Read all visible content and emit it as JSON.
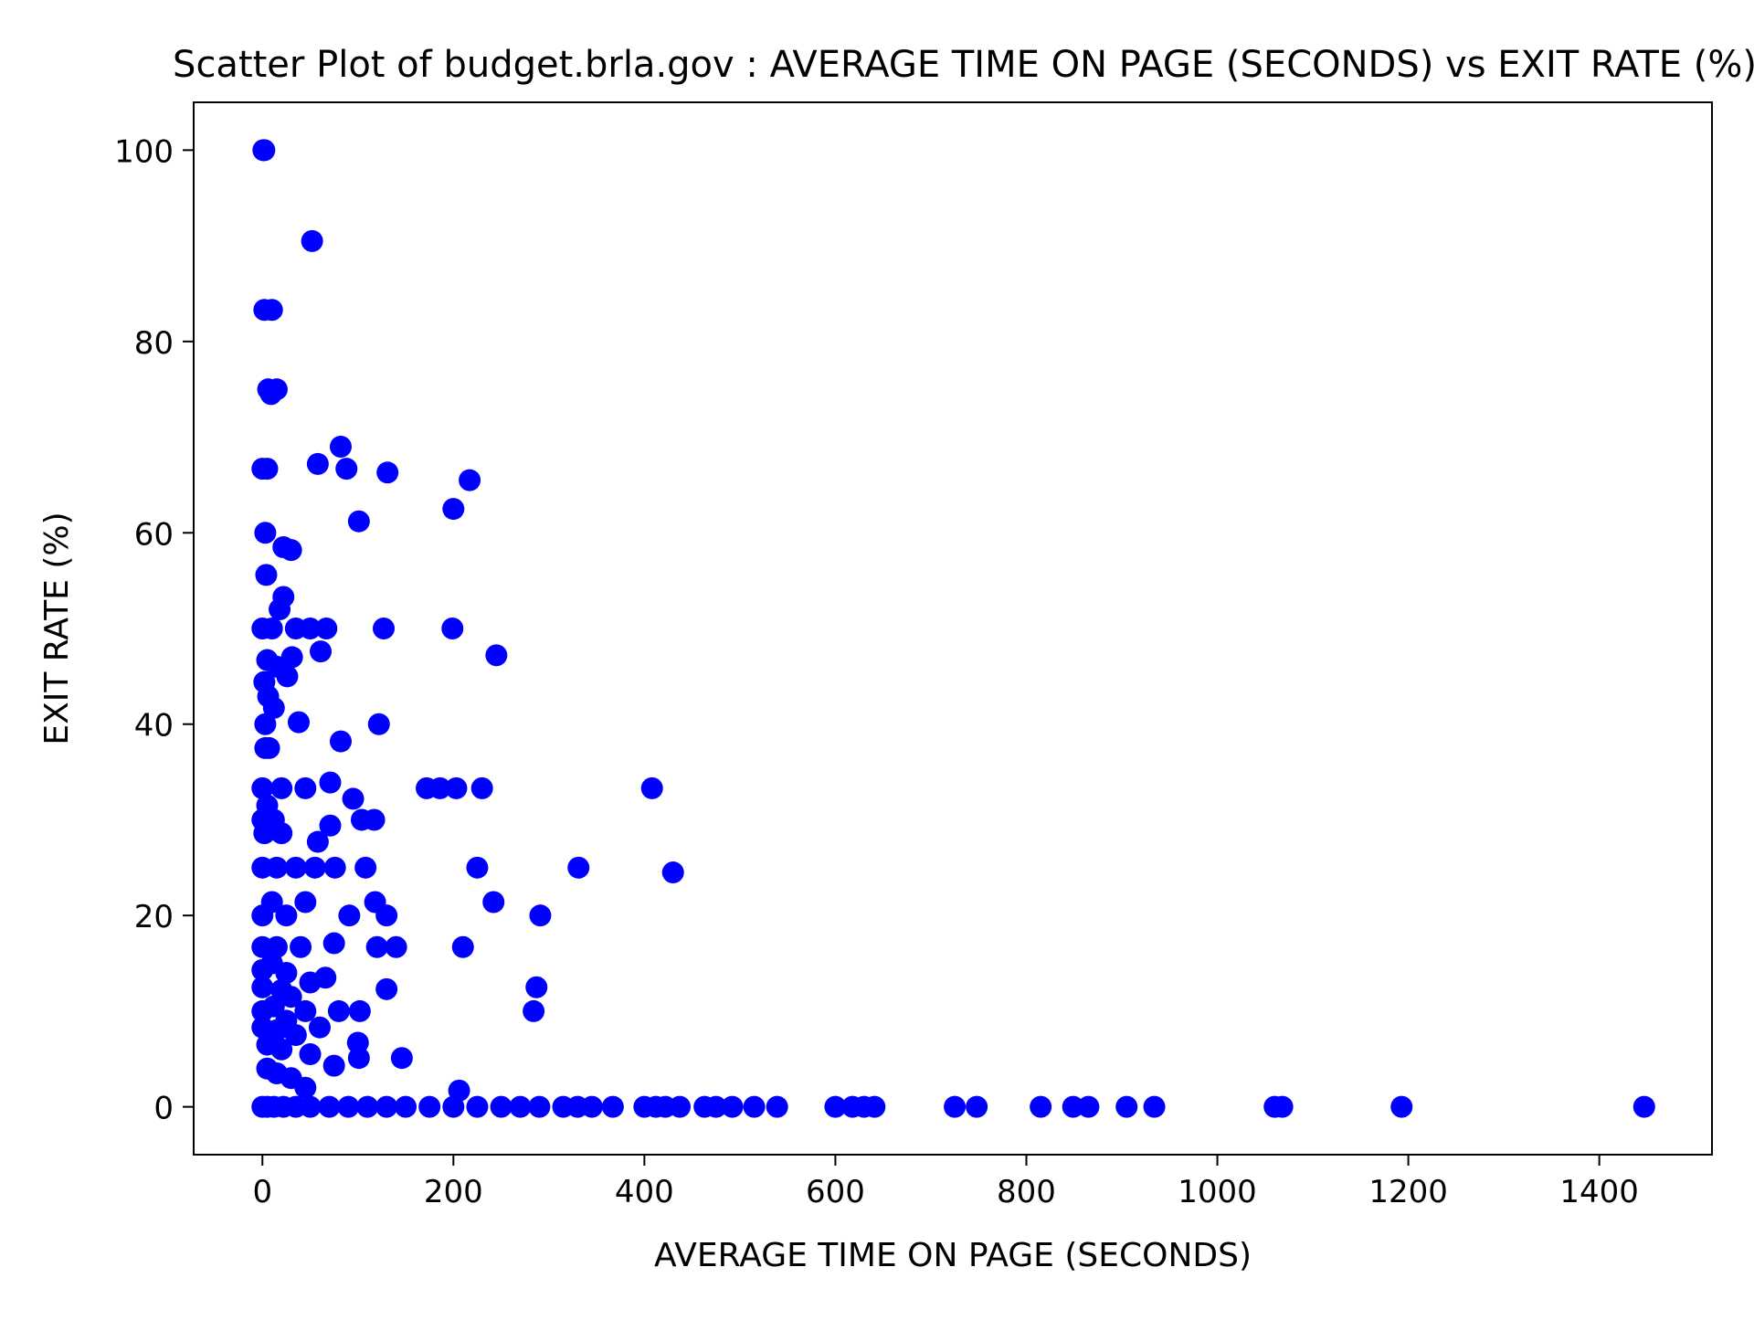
{
  "chart_data": {
    "type": "scatter",
    "title": "Scatter Plot of budget.brla.gov : AVERAGE TIME ON PAGE (SECONDS) vs EXIT RATE (%)",
    "xlabel": "AVERAGE TIME ON PAGE (SECONDS)",
    "ylabel": "EXIT RATE (%)",
    "xlim": [
      -72,
      1518
    ],
    "ylim": [
      -5,
      105
    ],
    "xticks": [
      0,
      200,
      400,
      600,
      800,
      1000,
      1200,
      1400
    ],
    "yticks": [
      0,
      20,
      40,
      60,
      80,
      100
    ],
    "grid": false,
    "legend": "none",
    "marker_color": "#0000ff",
    "series": [
      {
        "points": [
          [
            1,
            100
          ],
          [
            2,
            100
          ],
          [
            52,
            90.5
          ],
          [
            2,
            83.3
          ],
          [
            10,
            83.3
          ],
          [
            6,
            75
          ],
          [
            15,
            75
          ],
          [
            9,
            74.5
          ],
          [
            82,
            69
          ],
          [
            58,
            67.2
          ],
          [
            88,
            66.7
          ],
          [
            131,
            66.3
          ],
          [
            217,
            65.5
          ],
          [
            0,
            66.7
          ],
          [
            5,
            66.7
          ],
          [
            101,
            61.2
          ],
          [
            200,
            62.5
          ],
          [
            3,
            60
          ],
          [
            22,
            58.5
          ],
          [
            30,
            58.2
          ],
          [
            4,
            55.6
          ],
          [
            22,
            53.3
          ],
          [
            18,
            52
          ],
          [
            0,
            50
          ],
          [
            10,
            50
          ],
          [
            35,
            50
          ],
          [
            50,
            50
          ],
          [
            67,
            50
          ],
          [
            127,
            50
          ],
          [
            199,
            50
          ],
          [
            245,
            47.2
          ],
          [
            61,
            47.6
          ],
          [
            31,
            47
          ],
          [
            5,
            46.7
          ],
          [
            15,
            46
          ],
          [
            26,
            45
          ],
          [
            2,
            44.4
          ],
          [
            6,
            42.9
          ],
          [
            12,
            41.7
          ],
          [
            3,
            40
          ],
          [
            38,
            40.2
          ],
          [
            122,
            40
          ],
          [
            82,
            38.2
          ],
          [
            3,
            37.5
          ],
          [
            7,
            37.5
          ],
          [
            0,
            33.3
          ],
          [
            20,
            33.3
          ],
          [
            45,
            33.3
          ],
          [
            71,
            33.9
          ],
          [
            172,
            33.3
          ],
          [
            186,
            33.3
          ],
          [
            203,
            33.3
          ],
          [
            230,
            33.3
          ],
          [
            408,
            33.3
          ],
          [
            95,
            32.2
          ],
          [
            5,
            31.5
          ],
          [
            0,
            30
          ],
          [
            12,
            30
          ],
          [
            104,
            30
          ],
          [
            117,
            30
          ],
          [
            71,
            29.4
          ],
          [
            2,
            28.6
          ],
          [
            20,
            28.6
          ],
          [
            58,
            27.7
          ],
          [
            0,
            25
          ],
          [
            15,
            25
          ],
          [
            35,
            25
          ],
          [
            55,
            25
          ],
          [
            76,
            25
          ],
          [
            108,
            25
          ],
          [
            225,
            25
          ],
          [
            331,
            25
          ],
          [
            430,
            24.5
          ],
          [
            0,
            20
          ],
          [
            10,
            21.4
          ],
          [
            25,
            20
          ],
          [
            45,
            21.4
          ],
          [
            91,
            20
          ],
          [
            118,
            21.4
          ],
          [
            130,
            20
          ],
          [
            242,
            21.4
          ],
          [
            291,
            20
          ],
          [
            0,
            16.7
          ],
          [
            15,
            16.7
          ],
          [
            40,
            16.7
          ],
          [
            75,
            17.1
          ],
          [
            120,
            16.7
          ],
          [
            140,
            16.7
          ],
          [
            210,
            16.7
          ],
          [
            0,
            14.3
          ],
          [
            10,
            15
          ],
          [
            25,
            14
          ],
          [
            50,
            13
          ],
          [
            66,
            13.5
          ],
          [
            0,
            12.5
          ],
          [
            20,
            12.2
          ],
          [
            30,
            11.5
          ],
          [
            130,
            12.3
          ],
          [
            287,
            12.5
          ],
          [
            0,
            10
          ],
          [
            12,
            10.5
          ],
          [
            25,
            9
          ],
          [
            45,
            10
          ],
          [
            80,
            10
          ],
          [
            102,
            10
          ],
          [
            284,
            10
          ],
          [
            0,
            8.3
          ],
          [
            15,
            8
          ],
          [
            35,
            7.5
          ],
          [
            60,
            8.3
          ],
          [
            5,
            6.5
          ],
          [
            20,
            6
          ],
          [
            50,
            5.5
          ],
          [
            100,
            6.7
          ],
          [
            101,
            5.1
          ],
          [
            146,
            5.1
          ],
          [
            75,
            4.3
          ],
          [
            5,
            4
          ],
          [
            15,
            3.5
          ],
          [
            30,
            3
          ],
          [
            45,
            2
          ],
          [
            206,
            1.7
          ],
          [
            0,
            0
          ],
          [
            5,
            0
          ],
          [
            12,
            0
          ],
          [
            22,
            0
          ],
          [
            35,
            0
          ],
          [
            50,
            0
          ],
          [
            70,
            0
          ],
          [
            90,
            0
          ],
          [
            110,
            0
          ],
          [
            130,
            0
          ],
          [
            150,
            0
          ],
          [
            175,
            0
          ],
          [
            200,
            0
          ],
          [
            225,
            0
          ],
          [
            250,
            0
          ],
          [
            270,
            0
          ],
          [
            290,
            0
          ],
          [
            315,
            0
          ],
          [
            330,
            0
          ],
          [
            345,
            0
          ],
          [
            367,
            0
          ],
          [
            400,
            0
          ],
          [
            412,
            0
          ],
          [
            422,
            0
          ],
          [
            437,
            0
          ],
          [
            463,
            0
          ],
          [
            475,
            0
          ],
          [
            492,
            0
          ],
          [
            515,
            0
          ],
          [
            539,
            0
          ],
          [
            600,
            0
          ],
          [
            618,
            0
          ],
          [
            630,
            0
          ],
          [
            641,
            0
          ],
          [
            725,
            0
          ],
          [
            748,
            0
          ],
          [
            815,
            0
          ],
          [
            849,
            0
          ],
          [
            865,
            0
          ],
          [
            905,
            0
          ],
          [
            934,
            0
          ],
          [
            1060,
            0
          ],
          [
            1068,
            0
          ],
          [
            1193,
            0
          ],
          [
            1447,
            0
          ]
        ]
      }
    ]
  }
}
